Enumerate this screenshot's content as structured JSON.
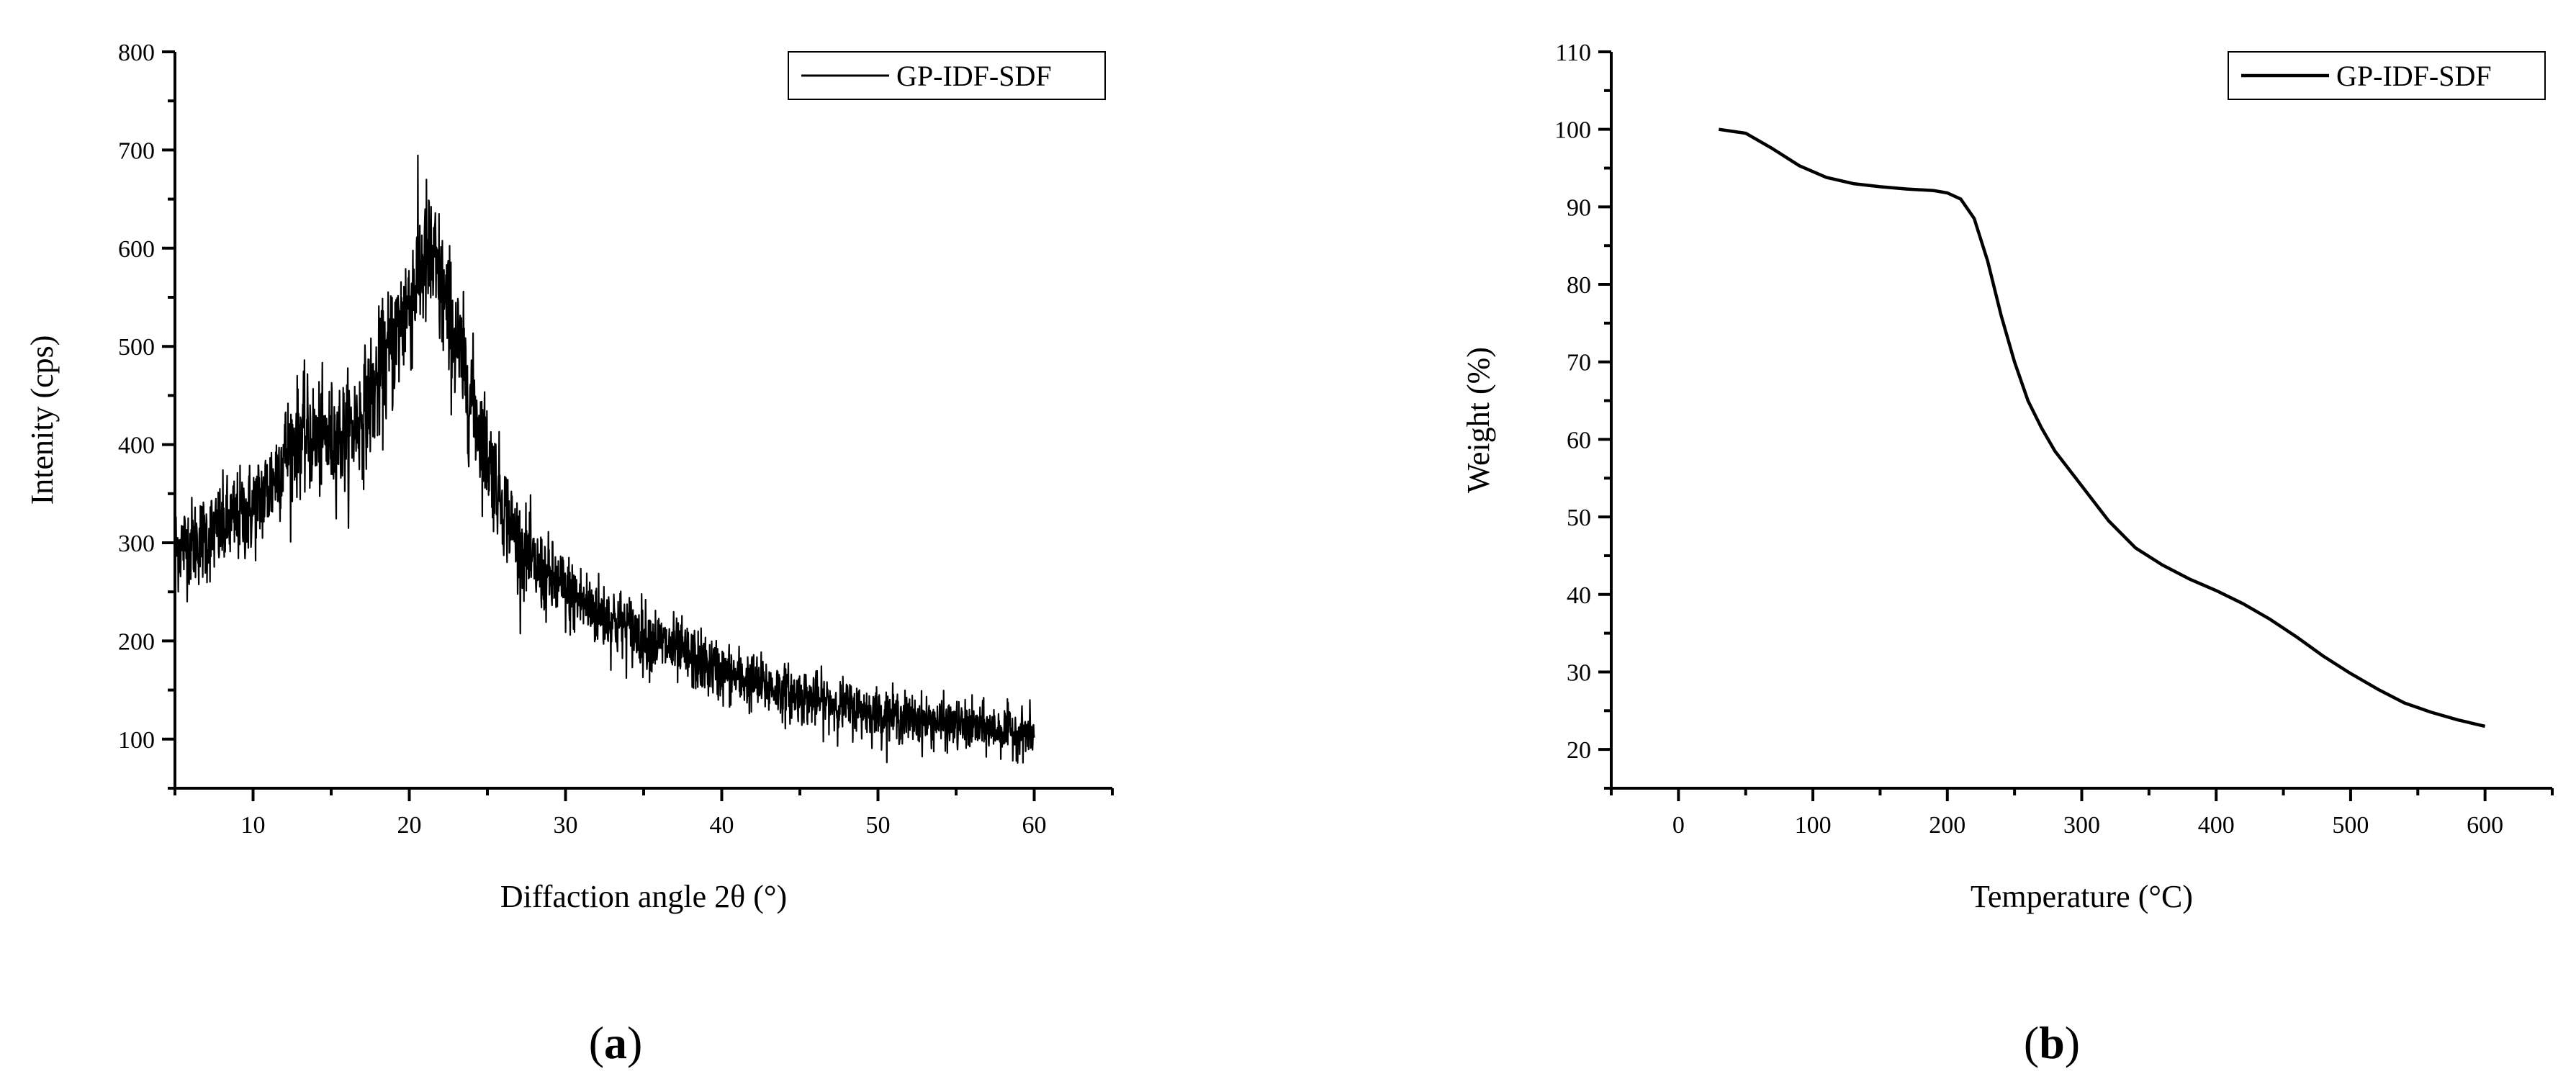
{
  "figure": {
    "panels": [
      "a",
      "b"
    ]
  },
  "chart_data": [
    {
      "panel_label": "a",
      "type": "line",
      "xlabel": "Diffaction angle 2θ (°)",
      "ylabel": "Intenity (cps)",
      "xlim": [
        5,
        65
      ],
      "ylim": [
        50,
        800
      ],
      "xticks": [
        10,
        20,
        30,
        40,
        50,
        60
      ],
      "yticks": [
        100,
        200,
        300,
        400,
        500,
        600,
        700,
        800
      ],
      "grid": false,
      "legend_position": "top-right",
      "series": [
        {
          "name": "GP-IDF-SDF",
          "color": "#000000",
          "noisy": true,
          "x": [
            5,
            6,
            7,
            8,
            9,
            10,
            11,
            12,
            13,
            14,
            15,
            16,
            17,
            18,
            19,
            20,
            20.5,
            21,
            21.5,
            22,
            23,
            24,
            25,
            26,
            27,
            28,
            29,
            30,
            32,
            34,
            36,
            38,
            40,
            42,
            44,
            46,
            48,
            50,
            52,
            54,
            56,
            58,
            60
          ],
          "y": [
            295,
            300,
            305,
            315,
            325,
            335,
            355,
            390,
            410,
            405,
            405,
            410,
            430,
            465,
            505,
            545,
            570,
            590,
            585,
            560,
            505,
            445,
            390,
            340,
            300,
            275,
            262,
            250,
            230,
            213,
            198,
            183,
            168,
            158,
            148,
            140,
            133,
            126,
            121,
            116,
            112,
            109,
            105
          ]
        }
      ]
    },
    {
      "panel_label": "b",
      "type": "line",
      "xlabel": "Temperature (°C)",
      "ylabel": "Weight (%)",
      "xlim": [
        -50,
        650
      ],
      "ylim": [
        15,
        110
      ],
      "xticks": [
        0,
        100,
        200,
        300,
        400,
        500,
        600
      ],
      "yticks": [
        20,
        30,
        40,
        50,
        60,
        70,
        80,
        90,
        100,
        110
      ],
      "grid": false,
      "legend_position": "top-right",
      "series": [
        {
          "name": "GP-IDF-SDF",
          "color": "#000000",
          "noisy": false,
          "x": [
            30,
            50,
            70,
            90,
            110,
            130,
            150,
            170,
            190,
            200,
            210,
            220,
            230,
            240,
            250,
            260,
            270,
            280,
            300,
            320,
            340,
            360,
            380,
            400,
            420,
            440,
            460,
            480,
            500,
            520,
            540,
            560,
            580,
            600
          ],
          "y": [
            100,
            99.5,
            97.5,
            95.3,
            93.8,
            93,
            92.6,
            92.3,
            92.1,
            91.8,
            91,
            88.5,
            83,
            76,
            70,
            65,
            61.5,
            58.5,
            54,
            49.5,
            46,
            43.8,
            42,
            40.5,
            38.8,
            36.8,
            34.5,
            32,
            29.8,
            27.8,
            26,
            24.8,
            23.8,
            23
          ]
        }
      ]
    }
  ]
}
